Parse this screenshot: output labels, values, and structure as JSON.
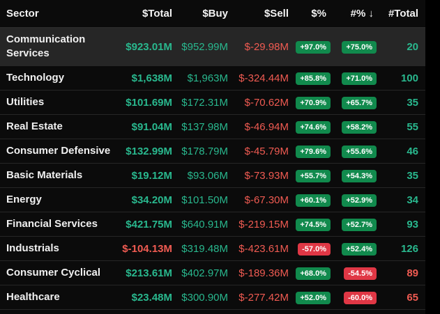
{
  "columns": {
    "sector": "Sector",
    "total": "$Total",
    "buy": "$Buy",
    "sell": "$Sell",
    "pct": "$%",
    "hpct": "#%",
    "hpct_sort_icon": "↓",
    "count": "#Total"
  },
  "colors": {
    "positive": "#29b88e",
    "negative": "#f05b52",
    "positive_badge": "#118a4d",
    "negative_badge": "#e03745",
    "highlight_row": "#262626"
  },
  "rows": [
    {
      "sector": "Communication Services",
      "total": "$923.01M",
      "total_sign": "pos",
      "buy": "$952.99M",
      "sell": "$-29.98M",
      "pct": "+97.0%",
      "pct_sign": "pos",
      "hpct": "+75.0%",
      "hpct_sign": "pos",
      "count": "20",
      "count_sign": "pos",
      "highlighted": true
    },
    {
      "sector": "Technology",
      "total": "$1,638M",
      "total_sign": "pos",
      "buy": "$1,963M",
      "sell": "$-324.44M",
      "pct": "+85.8%",
      "pct_sign": "pos",
      "hpct": "+71.0%",
      "hpct_sign": "pos",
      "count": "100",
      "count_sign": "pos"
    },
    {
      "sector": "Utilities",
      "total": "$101.69M",
      "total_sign": "pos",
      "buy": "$172.31M",
      "sell": "$-70.62M",
      "pct": "+70.9%",
      "pct_sign": "pos",
      "hpct": "+65.7%",
      "hpct_sign": "pos",
      "count": "35",
      "count_sign": "pos"
    },
    {
      "sector": "Real Estate",
      "total": "$91.04M",
      "total_sign": "pos",
      "buy": "$137.98M",
      "sell": "$-46.94M",
      "pct": "+74.6%",
      "pct_sign": "pos",
      "hpct": "+58.2%",
      "hpct_sign": "pos",
      "count": "55",
      "count_sign": "pos"
    },
    {
      "sector": "Consumer Defensive",
      "total": "$132.99M",
      "total_sign": "pos",
      "buy": "$178.79M",
      "sell": "$-45.79M",
      "pct": "+79.6%",
      "pct_sign": "pos",
      "hpct": "+55.6%",
      "hpct_sign": "pos",
      "count": "46",
      "count_sign": "pos"
    },
    {
      "sector": "Basic Materials",
      "total": "$19.12M",
      "total_sign": "pos",
      "buy": "$93.06M",
      "sell": "$-73.93M",
      "pct": "+55.7%",
      "pct_sign": "pos",
      "hpct": "+54.3%",
      "hpct_sign": "pos",
      "count": "35",
      "count_sign": "pos"
    },
    {
      "sector": "Energy",
      "total": "$34.20M",
      "total_sign": "pos",
      "buy": "$101.50M",
      "sell": "$-67.30M",
      "pct": "+60.1%",
      "pct_sign": "pos",
      "hpct": "+52.9%",
      "hpct_sign": "pos",
      "count": "34",
      "count_sign": "pos"
    },
    {
      "sector": "Financial Services",
      "total": "$421.75M",
      "total_sign": "pos",
      "buy": "$640.91M",
      "sell": "$-219.15M",
      "pct": "+74.5%",
      "pct_sign": "pos",
      "hpct": "+52.7%",
      "hpct_sign": "pos",
      "count": "93",
      "count_sign": "pos"
    },
    {
      "sector": "Industrials",
      "total": "$-104.13M",
      "total_sign": "neg",
      "buy": "$319.48M",
      "sell": "$-423.61M",
      "pct": "-57.0%",
      "pct_sign": "neg",
      "hpct": "+52.4%",
      "hpct_sign": "pos",
      "count": "126",
      "count_sign": "pos"
    },
    {
      "sector": "Consumer Cyclical",
      "total": "$213.61M",
      "total_sign": "pos",
      "buy": "$402.97M",
      "sell": "$-189.36M",
      "pct": "+68.0%",
      "pct_sign": "pos",
      "hpct": "-54.5%",
      "hpct_sign": "neg",
      "count": "89",
      "count_sign": "neg"
    },
    {
      "sector": "Healthcare",
      "total": "$23.48M",
      "total_sign": "pos",
      "buy": "$300.90M",
      "sell": "$-277.42M",
      "pct": "+52.0%",
      "pct_sign": "pos",
      "hpct": "-60.0%",
      "hpct_sign": "neg",
      "count": "65",
      "count_sign": "neg"
    }
  ]
}
